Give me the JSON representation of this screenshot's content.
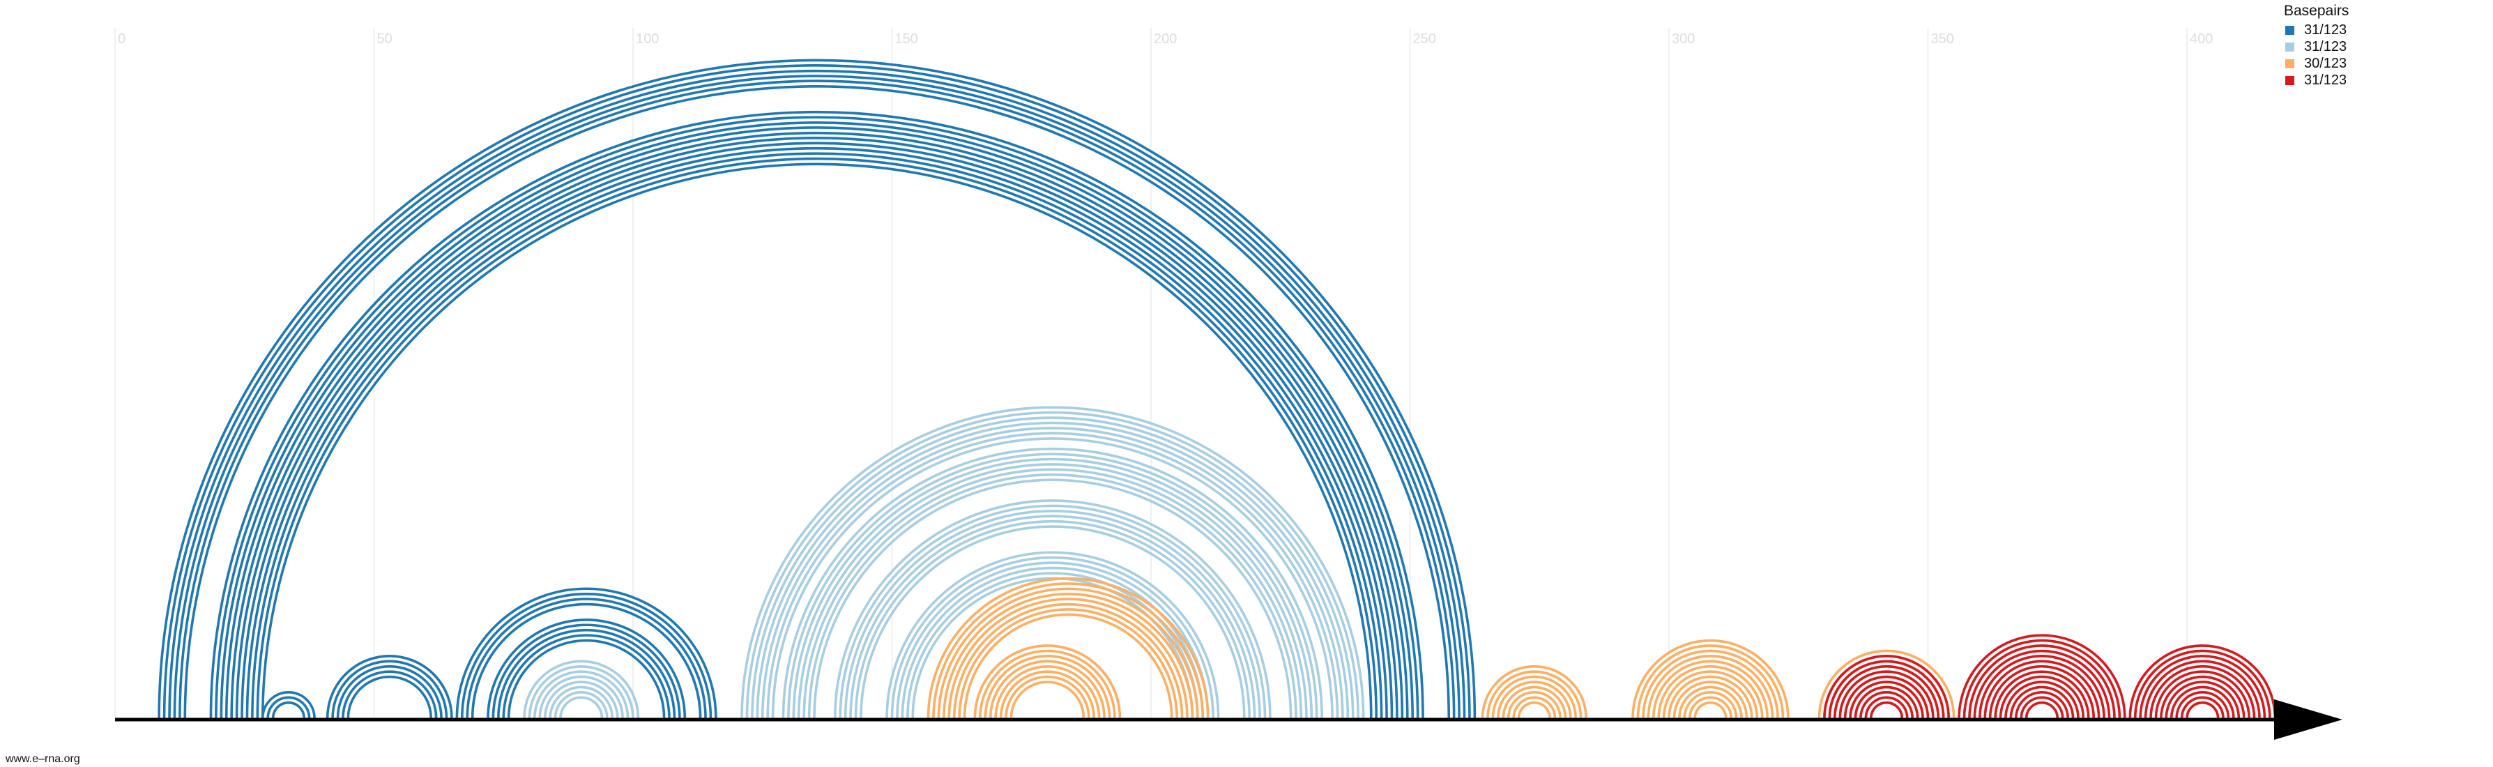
{
  "legend": {
    "title": "Basepairs",
    "items": [
      {
        "label": "31/123",
        "color": "#1f78b4"
      },
      {
        "label": "31/123",
        "color": "#a6cee3"
      },
      {
        "label": "30/123",
        "color": "#fdae61"
      },
      {
        "label": "31/123",
        "color": "#d7191c"
      }
    ]
  },
  "watermark": "www.e–rna.org",
  "chart_data": {
    "type": "arc",
    "x_ticks": [
      0,
      50,
      100,
      150,
      200,
      250,
      300,
      350,
      400
    ],
    "x_range": [
      0,
      420
    ],
    "grid": true,
    "legend_position": "top-right",
    "arc_groups": [
      {
        "series": 0,
        "center": 135.5,
        "radii": [
          127,
          126,
          125,
          124,
          123,
          122
        ],
        "x": [
          9,
          262
        ]
      },
      {
        "series": 0,
        "center": 135.5,
        "radii": [
          117,
          116,
          115,
          114,
          113,
          112,
          111,
          110,
          109,
          108,
          107
        ],
        "x": [
          18,
          253
        ]
      },
      {
        "series": 0,
        "center": 33.5,
        "radii": [
          5,
          4,
          3
        ],
        "x": [
          29,
          39
        ]
      },
      {
        "series": 0,
        "center": 53,
        "radii": [
          12,
          11,
          10,
          9,
          8
        ],
        "x": [
          41,
          65
        ]
      },
      {
        "series": 0,
        "center": 91,
        "radii": [
          25,
          24,
          23,
          22
        ],
        "x": [
          66,
          116
        ]
      },
      {
        "series": 0,
        "center": 91,
        "radii": [
          19,
          18,
          17,
          16,
          15
        ],
        "x": [
          72,
          110
        ]
      },
      {
        "series": 1,
        "center": 90,
        "radii": [
          11,
          10,
          9,
          8,
          7,
          6,
          5,
          4
        ],
        "x": [
          79,
          101
        ]
      },
      {
        "series": 1,
        "center": 181,
        "radii": [
          60,
          59,
          58,
          57,
          56,
          55,
          54
        ],
        "x": [
          121,
          241
        ]
      },
      {
        "series": 1,
        "center": 181,
        "radii": [
          52,
          51,
          50,
          49,
          48,
          47,
          46
        ],
        "x": [
          129,
          233
        ]
      },
      {
        "series": 1,
        "center": 181,
        "radii": [
          42,
          41,
          40,
          39,
          38,
          37
        ],
        "x": [
          139,
          223
        ]
      },
      {
        "series": 1,
        "center": 181,
        "radii": [
          32,
          31,
          30,
          29,
          28,
          27
        ],
        "x": [
          149,
          213
        ]
      },
      {
        "series": 2,
        "center": 184,
        "radii": [
          27,
          26,
          25,
          24,
          23,
          22,
          21,
          20
        ],
        "x": [
          157,
          211
        ]
      },
      {
        "series": 2,
        "center": 180,
        "radii": [
          14,
          13,
          12,
          11,
          10,
          9,
          8,
          7
        ],
        "x": [
          166,
          194
        ]
      },
      {
        "series": 2,
        "center": 274,
        "radii": [
          10,
          9,
          8,
          7,
          6,
          5,
          4,
          3
        ],
        "x": [
          264,
          284
        ]
      },
      {
        "series": 2,
        "center": 308,
        "radii": [
          15,
          14,
          13,
          12,
          11,
          10,
          9,
          8,
          7,
          6,
          5,
          4,
          3
        ],
        "x": [
          293,
          323
        ]
      },
      {
        "series": 2,
        "center": 342,
        "radii": [
          13,
          12,
          11,
          10,
          9,
          8,
          7,
          6,
          5
        ],
        "x": [
          329,
          355
        ]
      },
      {
        "series": 3,
        "center": 342,
        "radii": [
          12,
          11,
          10,
          9,
          8,
          7,
          6,
          5,
          4,
          3
        ],
        "x": [
          330,
          354
        ]
      },
      {
        "series": 3,
        "center": 372,
        "radii": [
          16,
          15,
          14,
          13,
          12,
          11,
          10,
          9,
          8,
          7,
          6,
          5,
          4,
          3
        ],
        "x": [
          356,
          388
        ]
      },
      {
        "series": 3,
        "center": 403,
        "radii": [
          14,
          13,
          12,
          11,
          10,
          9,
          8,
          7,
          6,
          5,
          4,
          3
        ],
        "x": [
          389,
          417
        ]
      }
    ]
  }
}
